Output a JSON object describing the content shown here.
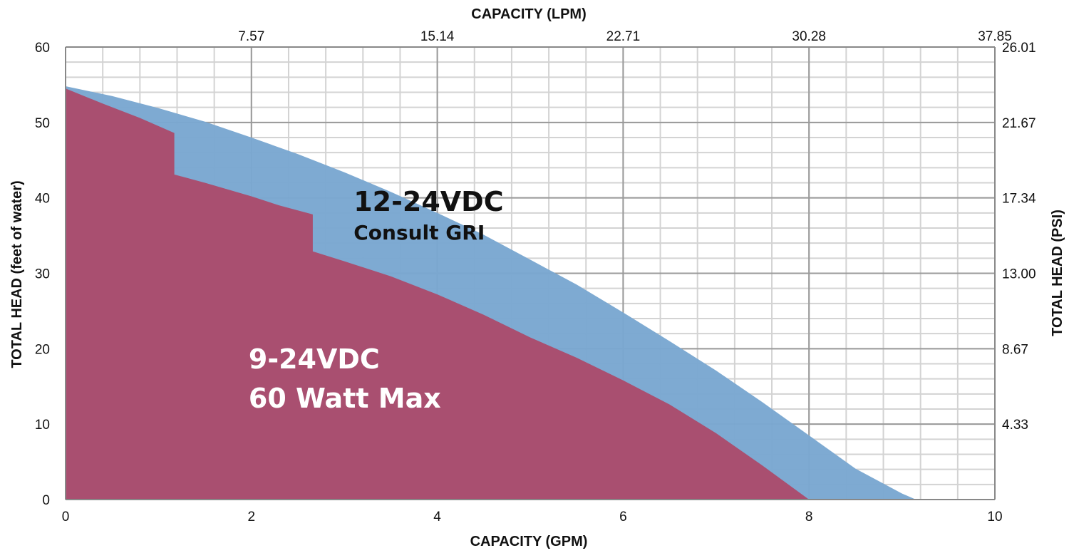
{
  "chart_data": {
    "type": "area",
    "title": "",
    "x_bottom": {
      "label": "CAPACITY (GPM)",
      "range": [
        0,
        10
      ],
      "ticks": [
        0,
        2,
        4,
        6,
        8,
        10
      ],
      "tick_labels": [
        "0",
        "2",
        "4",
        "6",
        "8",
        "10"
      ]
    },
    "x_top": {
      "label": "CAPACITY (LPM)",
      "tick_labels": [
        "7.57",
        "15.14",
        "22.71",
        "30.28",
        "37.85"
      ],
      "tick_positions_gpm": [
        2,
        4,
        6,
        8,
        10
      ]
    },
    "y_left": {
      "label": "TOTAL HEAD (feet of water)",
      "range": [
        0,
        60
      ],
      "ticks": [
        0,
        10,
        20,
        30,
        40,
        50,
        60
      ],
      "tick_labels": [
        "0",
        "10",
        "20",
        "30",
        "40",
        "50",
        "60"
      ]
    },
    "y_right": {
      "label": "TOTAL HEAD (PSI)",
      "tick_labels": [
        "4.33",
        "8.67",
        "13.00",
        "17.34",
        "21.67",
        "26.01"
      ],
      "tick_positions_ft": [
        10,
        20,
        30,
        40,
        50,
        60
      ]
    },
    "grid": {
      "major": true,
      "minor": true,
      "minor_x_step": 0.4,
      "minor_y_step": 2
    },
    "series": [
      {
        "color": "#7aa7d1",
        "x": [
          0,
          0.5,
          1,
          1.5,
          2,
          2.5,
          3,
          3.5,
          4,
          4.5,
          5,
          5.5,
          6,
          6.5,
          7,
          7.5,
          8,
          8.5,
          9,
          9.15
        ],
        "y": [
          54.8,
          53.5,
          51.9,
          50.1,
          48.0,
          45.8,
          43.4,
          40.8,
          38.0,
          35.1,
          31.8,
          28.5,
          24.8,
          21.0,
          17.1,
          12.9,
          8.5,
          4.1,
          0.8,
          0
        ]
      },
      {
        "color": "#ac4868",
        "x": [
          0,
          0.4,
          0.8,
          1.17,
          1.17,
          1.5,
          2,
          2.3,
          2.66,
          2.66,
          3,
          3.5,
          4,
          4.5,
          5,
          5.5,
          6,
          6.5,
          7,
          7.5,
          8
        ],
        "y": [
          54.5,
          52.5,
          50.6,
          48.6,
          43.1,
          42.0,
          40.2,
          39.0,
          37.8,
          32.9,
          31.6,
          29.6,
          27.2,
          24.5,
          21.5,
          18.8,
          15.8,
          12.6,
          8.8,
          4.5,
          0
        ]
      }
    ],
    "annotations": [
      {
        "line1": "12-24VDC",
        "line2": "Consult GRI",
        "color": "#111111",
        "at_x": 3.1,
        "at_y": 39.5
      },
      {
        "line1": "9-24VDC",
        "line2": "60 Watt Max",
        "color": "#ffffff",
        "at_x": 1.97,
        "at_y": 18.5
      }
    ],
    "colors": {
      "background": "#ffffff",
      "minor_grid": "#d3d3d3",
      "major_grid": "#9a9a9a",
      "axis": "#888888"
    }
  }
}
